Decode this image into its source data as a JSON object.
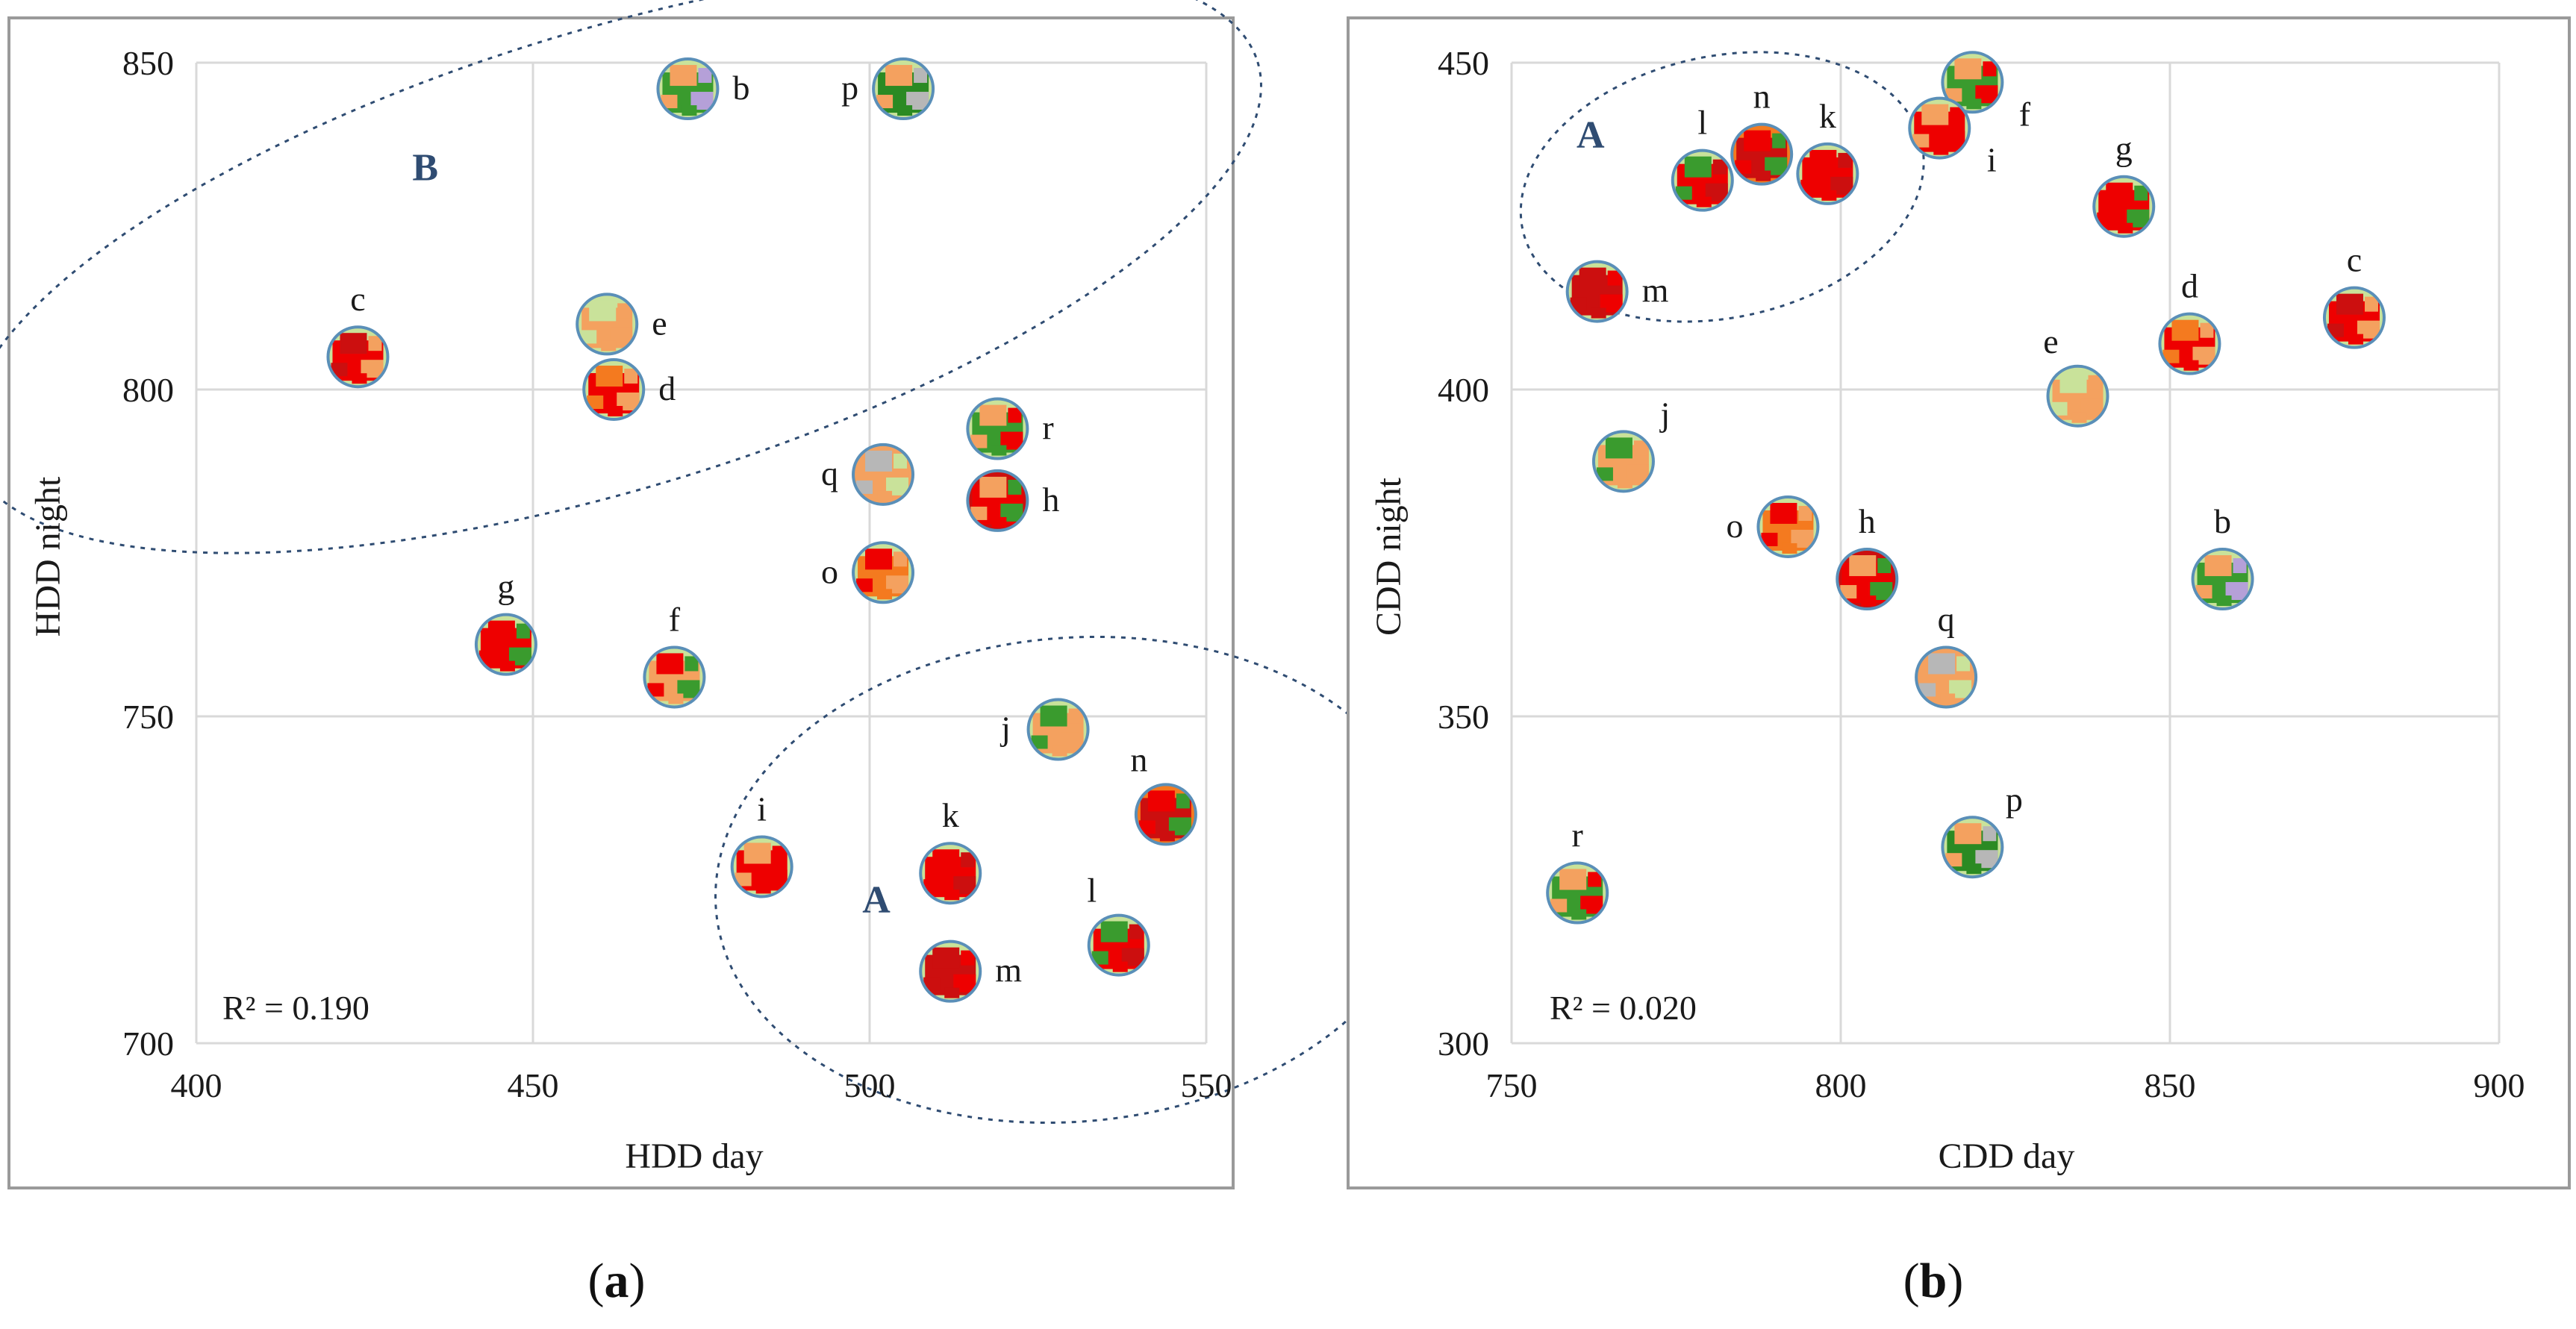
{
  "chart_data": [
    {
      "type": "scatter",
      "panel": "(a)",
      "caption_prefix": "(",
      "caption_letter": "a",
      "caption_suffix": ")",
      "xlabel": "HDD day",
      "ylabel": "HDD night",
      "xlim": [
        400,
        550
      ],
      "ylim": [
        700,
        850
      ],
      "xticks": [
        400,
        450,
        500,
        550
      ],
      "yticks": [
        700,
        750,
        800,
        850
      ],
      "grid": true,
      "r2_label": "R² = 0.190",
      "points": [
        {
          "label": "b",
          "x": 473,
          "y": 846,
          "colors": [
            "#3a9b2e",
            "#f4a15f",
            "#b5a0d8",
            "#c9e29a"
          ],
          "label_pos": "right"
        },
        {
          "label": "p",
          "x": 505,
          "y": 846,
          "colors": [
            "#2b8a23",
            "#f4a15f",
            "#b7b7b7",
            "#c9e29a"
          ],
          "label_pos": "left"
        },
        {
          "label": "c",
          "x": 424,
          "y": 805,
          "colors": [
            "#ee0000",
            "#cc0f0f",
            "#f4a15f",
            "#c9e29a"
          ],
          "label_pos": "top"
        },
        {
          "label": "e",
          "x": 461,
          "y": 810,
          "colors": [
            "#f4a15f",
            "#c9e29a",
            "#f4a15f",
            "#c9e29a"
          ],
          "label_pos": "right"
        },
        {
          "label": "d",
          "x": 462,
          "y": 800,
          "colors": [
            "#ee0000",
            "#f47a1f",
            "#f4a15f",
            "#c9e29a"
          ],
          "label_pos": "right"
        },
        {
          "label": "r",
          "x": 519,
          "y": 794,
          "colors": [
            "#3a9b2e",
            "#f4a15f",
            "#ee0000",
            "#c9e29a"
          ],
          "label_pos": "right"
        },
        {
          "label": "q",
          "x": 502,
          "y": 787,
          "colors": [
            "#f4a15f",
            "#b7b7b7",
            "#c9e29a",
            "#f4a15f"
          ],
          "label_pos": "left"
        },
        {
          "label": "h",
          "x": 519,
          "y": 783,
          "colors": [
            "#ee0000",
            "#f4a15f",
            "#3a9b2e",
            "#cc0f0f"
          ],
          "label_pos": "right"
        },
        {
          "label": "o",
          "x": 502,
          "y": 772,
          "colors": [
            "#f47a1f",
            "#ee0000",
            "#f4a15f",
            "#c9e29a"
          ],
          "label_pos": "left"
        },
        {
          "label": "g",
          "x": 446,
          "y": 761,
          "colors": [
            "#ee0000",
            "#ee0000",
            "#3a9b2e",
            "#c9e29a"
          ],
          "label_pos": "top"
        },
        {
          "label": "f",
          "x": 471,
          "y": 756,
          "colors": [
            "#f4a15f",
            "#ee0000",
            "#3a9b2e",
            "#c9e29a"
          ],
          "label_pos": "top"
        },
        {
          "label": "j",
          "x": 528,
          "y": 748,
          "colors": [
            "#f4a15f",
            "#3a9b2e",
            "#f4a15f",
            "#c9e29a"
          ],
          "label_pos": "bottom-left"
        },
        {
          "label": "n",
          "x": 544,
          "y": 735,
          "colors": [
            "#cc0f0f",
            "#ee0000",
            "#3a9b2e",
            "#f47a1f"
          ],
          "label_pos": "top-left"
        },
        {
          "label": "i",
          "x": 484,
          "y": 727,
          "colors": [
            "#ee0000",
            "#f4a15f",
            "#ee0000",
            "#c9e29a"
          ],
          "label_pos": "top"
        },
        {
          "label": "k",
          "x": 512,
          "y": 726,
          "colors": [
            "#ee0000",
            "#ee0000",
            "#cc0f0f",
            "#c9e29a"
          ],
          "label_pos": "top"
        },
        {
          "label": "l",
          "x": 537,
          "y": 715,
          "colors": [
            "#ee0000",
            "#3a9b2e",
            "#cc0f0f",
            "#c9e29a"
          ],
          "label_pos": "top-left"
        },
        {
          "label": "m",
          "x": 512,
          "y": 711,
          "colors": [
            "#cc0f0f",
            "#cc0f0f",
            "#ee0000",
            "#c9e29a"
          ],
          "label_pos": "right"
        }
      ],
      "groups": [
        {
          "name": "B",
          "cx": 462,
          "cy": 820,
          "rx": 100,
          "ry": 35,
          "rot_deg": -17,
          "label_x": 434,
          "label_y": 832
        },
        {
          "name": "A",
          "cx": 530,
          "cy": 725,
          "rx": 53,
          "ry": 37,
          "rot_deg": -5,
          "label_x": 501,
          "label_y": 720
        }
      ]
    },
    {
      "type": "scatter",
      "panel": "(b)",
      "caption_prefix": "(",
      "caption_letter": "b",
      "caption_suffix": ")",
      "xlabel": "CDD day",
      "ylabel": "CDD night",
      "xlim": [
        750,
        900
      ],
      "ylim": [
        300,
        450
      ],
      "xticks": [
        750,
        800,
        850,
        900
      ],
      "yticks": [
        300,
        350,
        400,
        450
      ],
      "grid": true,
      "r2_label": "R² = 0.020",
      "points": [
        {
          "label": "f",
          "x": 820,
          "y": 447,
          "colors": [
            "#3a9b2e",
            "#f4a15f",
            "#ee0000",
            "#c9e29a"
          ],
          "label_pos": "bottom-right"
        },
        {
          "label": "i",
          "x": 815,
          "y": 440,
          "colors": [
            "#ee0000",
            "#f4a15f",
            "#ee0000",
            "#c9e29a"
          ],
          "label_pos": "bottom-right"
        },
        {
          "label": "l",
          "x": 779,
          "y": 432,
          "colors": [
            "#ee0000",
            "#3a9b2e",
            "#cc0f0f",
            "#c9e29a"
          ],
          "label_pos": "top"
        },
        {
          "label": "n",
          "x": 788,
          "y": 436,
          "colors": [
            "#cc0f0f",
            "#ee0000",
            "#3a9b2e",
            "#f47a1f"
          ],
          "label_pos": "top"
        },
        {
          "label": "k",
          "x": 798,
          "y": 433,
          "colors": [
            "#ee0000",
            "#ee0000",
            "#cc0f0f",
            "#c9e29a"
          ],
          "label_pos": "top"
        },
        {
          "label": "g",
          "x": 843,
          "y": 428,
          "colors": [
            "#ee0000",
            "#ee0000",
            "#3a9b2e",
            "#c9e29a"
          ],
          "label_pos": "top"
        },
        {
          "label": "m",
          "x": 763,
          "y": 415,
          "colors": [
            "#cc0f0f",
            "#cc0f0f",
            "#ee0000",
            "#c9e29a"
          ],
          "label_pos": "right"
        },
        {
          "label": "c",
          "x": 878,
          "y": 411,
          "colors": [
            "#ee0000",
            "#cc0f0f",
            "#f4a15f",
            "#c9e29a"
          ],
          "label_pos": "top"
        },
        {
          "label": "d",
          "x": 853,
          "y": 407,
          "colors": [
            "#ee0000",
            "#f47a1f",
            "#f4a15f",
            "#c9e29a"
          ],
          "label_pos": "top"
        },
        {
          "label": "e",
          "x": 836,
          "y": 399,
          "colors": [
            "#f4a15f",
            "#c9e29a",
            "#f4a15f",
            "#c9e29a"
          ],
          "label_pos": "top-left"
        },
        {
          "label": "j",
          "x": 767,
          "y": 389,
          "colors": [
            "#f4a15f",
            "#3a9b2e",
            "#f4a15f",
            "#c9e29a"
          ],
          "label_pos": "top-right"
        },
        {
          "label": "o",
          "x": 792,
          "y": 379,
          "colors": [
            "#f47a1f",
            "#ee0000",
            "#f4a15f",
            "#c9e29a"
          ],
          "label_pos": "left"
        },
        {
          "label": "h",
          "x": 804,
          "y": 371,
          "colors": [
            "#ee0000",
            "#f4a15f",
            "#3a9b2e",
            "#cc0f0f"
          ],
          "label_pos": "top"
        },
        {
          "label": "b",
          "x": 858,
          "y": 371,
          "colors": [
            "#3a9b2e",
            "#f4a15f",
            "#b5a0d8",
            "#c9e29a"
          ],
          "label_pos": "top"
        },
        {
          "label": "q",
          "x": 816,
          "y": 356,
          "colors": [
            "#f4a15f",
            "#b7b7b7",
            "#c9e29a",
            "#f4a15f"
          ],
          "label_pos": "top"
        },
        {
          "label": "p",
          "x": 820,
          "y": 330,
          "colors": [
            "#2b8a23",
            "#f4a15f",
            "#b7b7b7",
            "#c9e29a"
          ],
          "label_pos": "top-right"
        },
        {
          "label": "r",
          "x": 760,
          "y": 323,
          "colors": [
            "#3a9b2e",
            "#f4a15f",
            "#ee0000",
            "#c9e29a"
          ],
          "label_pos": "top"
        }
      ],
      "groups": [
        {
          "name": "A",
          "cx": 782,
          "cy": 431,
          "rx": 31,
          "ry": 20,
          "rot_deg": -12,
          "label_x": 762,
          "label_y": 437
        }
      ]
    }
  ]
}
